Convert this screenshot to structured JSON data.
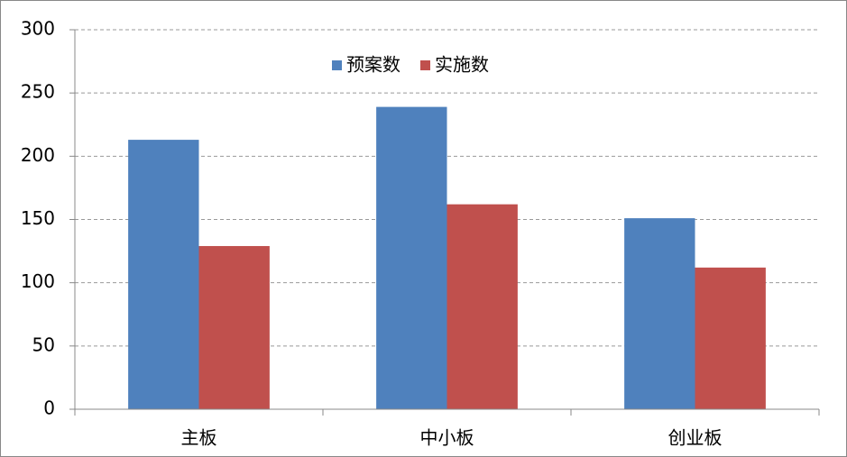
{
  "chart_data": {
    "type": "bar",
    "categories": [
      "主板",
      "中小板",
      "创业板"
    ],
    "series": [
      {
        "name": "预案数",
        "color": "#4f81bd",
        "values": [
          213,
          239,
          151
        ]
      },
      {
        "name": "实施数",
        "color": "#c0504d",
        "values": [
          129,
          162,
          112
        ]
      }
    ],
    "ylim": [
      0,
      300
    ],
    "yticks": [
      0,
      50,
      100,
      150,
      200,
      250,
      300
    ],
    "grid": true,
    "legend": "top"
  }
}
